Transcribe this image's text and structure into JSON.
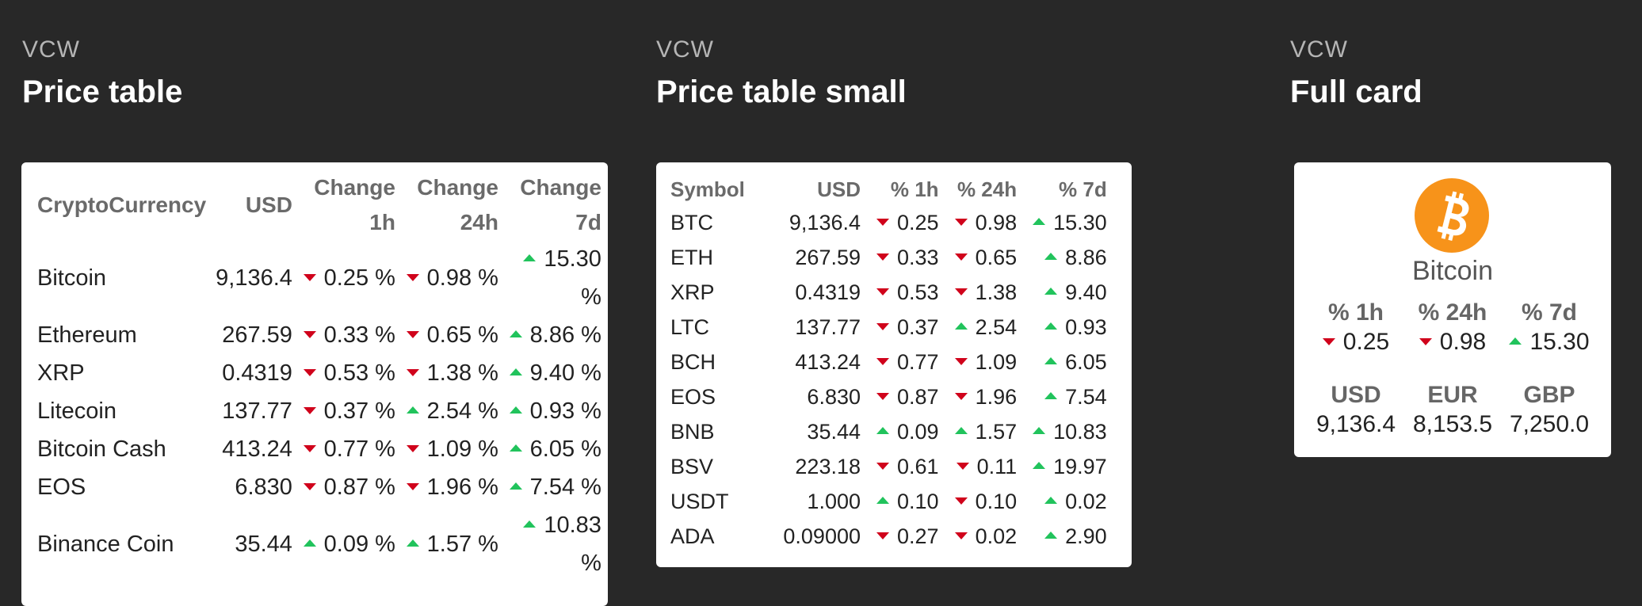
{
  "price_table": {
    "kicker": "VCW",
    "title": "Price table",
    "headers": {
      "crypto": "CryptoCurrency",
      "usd": "USD",
      "h1_line1": "Change",
      "h1_line2": "1h",
      "h24_line1": "Change",
      "h24_line2": "24h",
      "d7_line1": "Change",
      "d7_line2": "7d"
    },
    "rows": [
      {
        "name": "Bitcoin",
        "usd": "9,136.4",
        "h1": "0.25 %",
        "h24": "0.98 %",
        "d7": "15.30 %"
      },
      {
        "name": "Ethereum",
        "usd": "267.59",
        "h1": "0.33 %",
        "h24": "0.65 %",
        "d7": "8.86 %"
      },
      {
        "name": "XRP",
        "usd": "0.4319",
        "h1": "0.53 %",
        "h24": "1.38 %",
        "d7": "9.40 %"
      },
      {
        "name": "Litecoin",
        "usd": "137.77",
        "h1": "0.37 %",
        "h24": "2.54 %",
        "d7": "0.93 %"
      },
      {
        "name": "Bitcoin Cash",
        "usd": "413.24",
        "h1": "0.77 %",
        "h24": "1.09 %",
        "d7": "6.05 %"
      },
      {
        "name": "EOS",
        "usd": "6.830",
        "h1": "0.87 %",
        "h24": "1.96 %",
        "d7": "7.54 %"
      },
      {
        "name": "Binance Coin",
        "usd": "35.44",
        "h1": "0.09 %",
        "h24": "1.57 %",
        "d7": "10.83 %"
      }
    ]
  },
  "price_table_small": {
    "kicker": "VCW",
    "title": "Price table small",
    "headers": {
      "symbol": "Symbol",
      "usd": "USD",
      "h1": "% 1h",
      "h24": "% 24h",
      "d7": "% 7d"
    },
    "rows": [
      {
        "symbol": "BTC",
        "usd": "9,136.4",
        "h1": "0.25",
        "h24": "0.98",
        "d7": "15.30"
      },
      {
        "symbol": "ETH",
        "usd": "267.59",
        "h1": "0.33",
        "h24": "0.65",
        "d7": "8.86"
      },
      {
        "symbol": "XRP",
        "usd": "0.4319",
        "h1": "0.53",
        "h24": "1.38",
        "d7": "9.40"
      },
      {
        "symbol": "LTC",
        "usd": "137.77",
        "h1": "0.37",
        "h24": "2.54",
        "d7": "0.93"
      },
      {
        "symbol": "BCH",
        "usd": "413.24",
        "h1": "0.77",
        "h24": "1.09",
        "d7": "6.05"
      },
      {
        "symbol": "EOS",
        "usd": "6.830",
        "h1": "0.87",
        "h24": "1.96",
        "d7": "7.54"
      },
      {
        "symbol": "BNB",
        "usd": "35.44",
        "h1": "0.09",
        "h24": "1.57",
        "d7": "10.83"
      },
      {
        "symbol": "BSV",
        "usd": "223.18",
        "h1": "0.61",
        "h24": "0.11",
        "d7": "19.97"
      },
      {
        "symbol": "USDT",
        "usd": "1.000",
        "h1": "0.10",
        "h24": "0.10",
        "d7": "0.02"
      },
      {
        "symbol": "ADA",
        "usd": "0.09000",
        "h1": "0.27",
        "h24": "0.02",
        "d7": "2.90"
      }
    ]
  },
  "full_card": {
    "kicker": "VCW",
    "title": "Full card",
    "coin_name": "Bitcoin",
    "logo_icon": "bitcoin-logo-icon",
    "changes": [
      {
        "label": "% 1h",
        "value": "0.25",
        "direction": "down"
      },
      {
        "label": "% 24h",
        "value": "0.98",
        "direction": "down"
      },
      {
        "label": "% 7d",
        "value": "15.30",
        "direction": "up"
      }
    ],
    "prices": [
      {
        "label": "USD",
        "value": "9,136.4"
      },
      {
        "label": "EUR",
        "value": "8,153.5"
      },
      {
        "label": "GBP",
        "value": "7,250.0"
      }
    ]
  },
  "colors": {
    "background": "#282828",
    "up": "#21c35c",
    "down": "#d0021b",
    "bitcoin": "#f7931a"
  }
}
